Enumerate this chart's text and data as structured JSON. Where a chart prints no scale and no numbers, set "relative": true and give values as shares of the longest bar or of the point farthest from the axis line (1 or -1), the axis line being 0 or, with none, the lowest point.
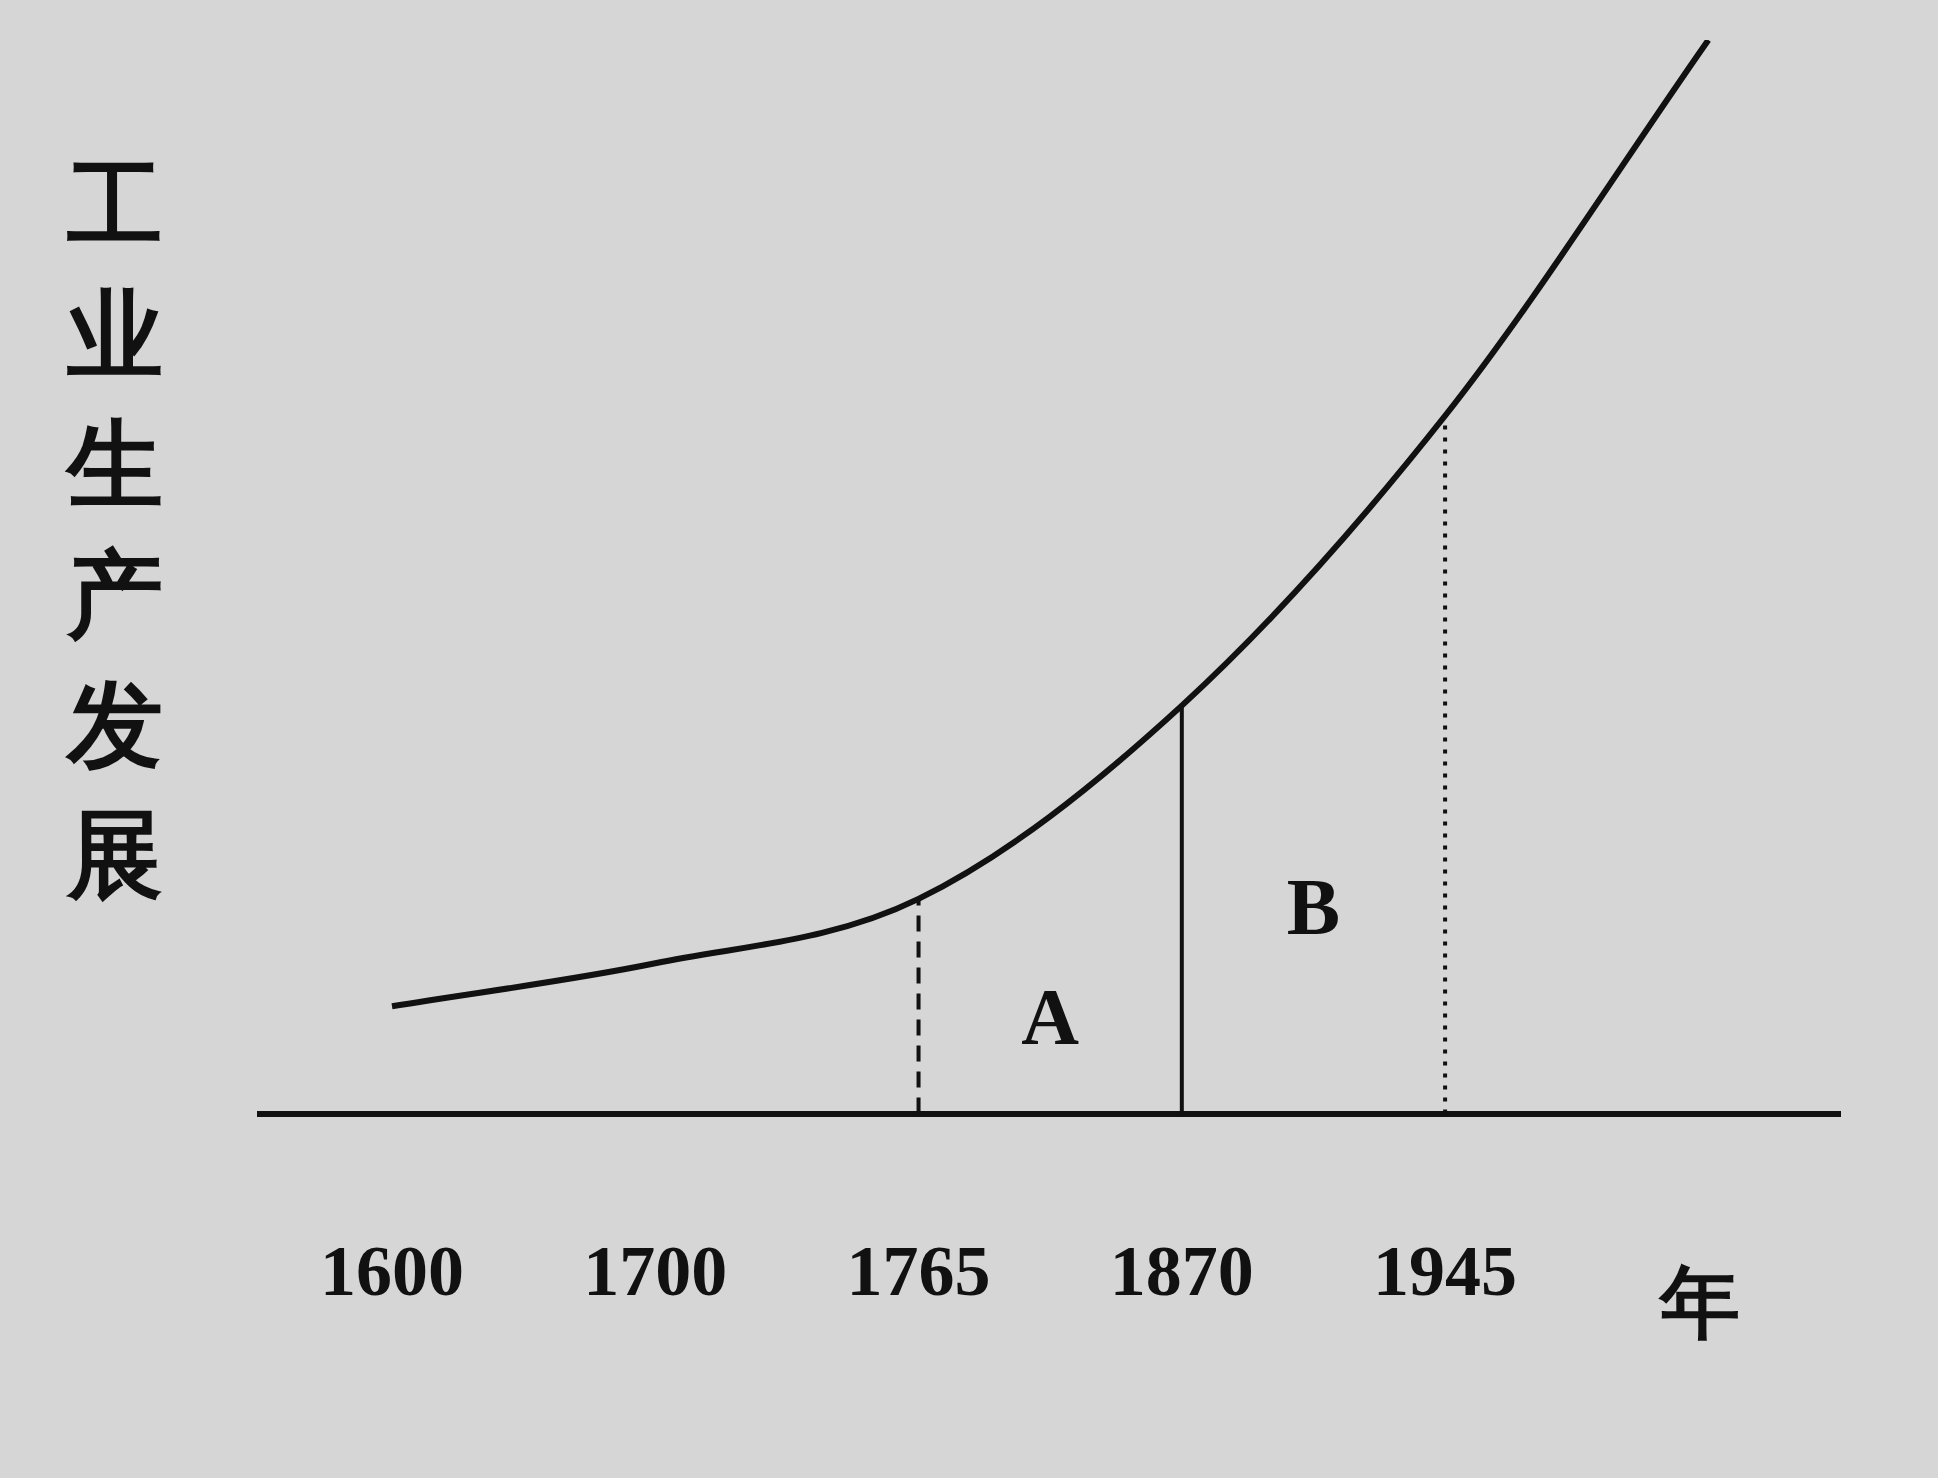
{
  "chart_data": {
    "type": "line",
    "relative": true,
    "ylabel": "工业生产发展",
    "xlabel": "年",
    "categories": [
      "1600",
      "1700",
      "1765",
      "1870",
      "1945",
      null
    ],
    "series": [
      {
        "color": "#111111",
        "values": [
          0.1,
          0.14,
          0.2,
          0.38,
          0.65,
          1
        ]
      }
    ],
    "ref_lines": [
      {
        "axis": "x",
        "value": "1765",
        "line_style": "dashed"
      },
      {
        "axis": "x",
        "value": "1870",
        "line_style": "solid"
      },
      {
        "axis": "x",
        "value": "1945",
        "line_style": "dotted"
      }
    ],
    "annotations": [
      "A",
      "B"
    ],
    "marker": "none",
    "grid": false,
    "legend": false
  }
}
